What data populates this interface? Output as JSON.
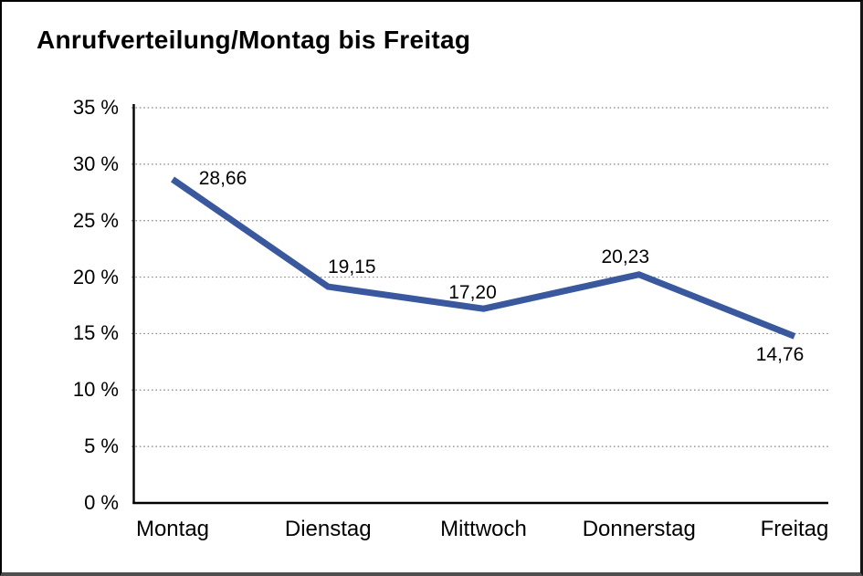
{
  "title": "Anrufverteilung/Montag bis Freitag",
  "chart_data": {
    "type": "line",
    "title": "Anrufverteilung/Montag bis Freitag",
    "categories": [
      "Montag",
      "Dienstag",
      "Mittwoch",
      "Donnerstag",
      "Freitag"
    ],
    "values": [
      28.66,
      19.15,
      17.2,
      20.23,
      14.76
    ],
    "value_labels": [
      "28,66",
      "19,15",
      "17,20",
      "20,23",
      "14,76"
    ],
    "y_ticks": [
      35,
      30,
      25,
      20,
      15,
      10,
      5,
      0
    ],
    "y_tick_labels": [
      "35 %",
      "30 %",
      "25 %",
      "20 %",
      "15 %",
      "10 %",
      "5 %",
      "0 %"
    ],
    "ylim": [
      0,
      35
    ],
    "xlabel": "",
    "ylabel": "",
    "legend": "none",
    "grid": "horizontal-dotted",
    "line_color": "#3A589E",
    "grid_color": "#878787",
    "axis_color": "#000000",
    "text_color": "#000000"
  }
}
